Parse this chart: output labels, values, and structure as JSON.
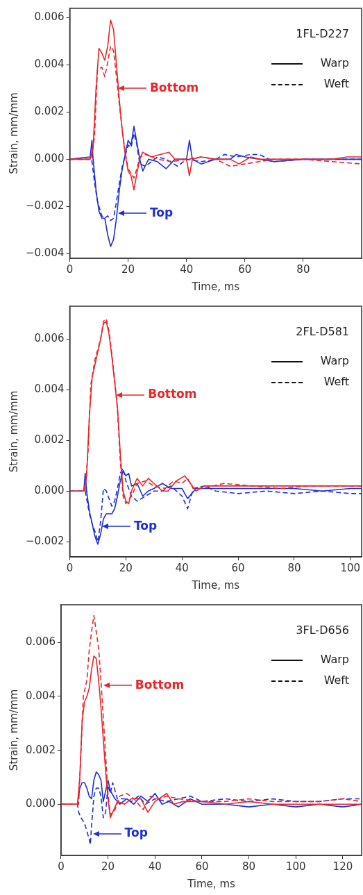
{
  "chart_data": [
    {
      "type": "line",
      "title": "1FL-D227",
      "xlabel": "Time, ms",
      "ylabel": "Strain, mm/mm",
      "xlim": [
        0,
        100
      ],
      "ylim": [
        -0.0042,
        0.0064
      ],
      "xticks": [
        0,
        20,
        40,
        60,
        80
      ],
      "yticks": [
        {
          "value": -0.004,
          "label": "−0.004"
        },
        {
          "value": -0.002,
          "label": "−0.002"
        },
        {
          "value": 0,
          "label": "0.000"
        },
        {
          "value": 0.002,
          "label": "0.002"
        },
        {
          "value": 0.004,
          "label": "0.004"
        },
        {
          "value": 0.006,
          "label": "0.006"
        }
      ],
      "grid": false,
      "marker": "none",
      "annotations": [
        "Warp",
        "Weft",
        {
          "text": "Bottom",
          "x": 16.5,
          "y": 0.003
        },
        {
          "text": "Top",
          "x": 16.5,
          "y": -0.0023
        }
      ],
      "series": [
        {
          "color": "#e8262a",
          "line_style": "solid",
          "x": [
            0,
            7,
            8,
            9,
            10,
            11,
            12,
            13,
            14,
            15,
            16,
            17,
            18,
            19,
            20,
            21,
            22,
            23,
            24,
            25,
            28,
            31,
            34,
            36,
            40,
            41,
            42,
            45,
            50,
            55,
            58,
            62,
            65,
            70,
            75,
            80,
            85,
            90,
            95,
            100
          ],
          "values": [
            0,
            0,
            0.0005,
            0.003,
            0.0047,
            0.0045,
            0.0042,
            0.0048,
            0.0059,
            0.0055,
            0.004,
            0.0025,
            0.0012,
            0.0002,
            -0.0005,
            -0.0007,
            -0.0013,
            -0.0006,
            0,
            0.0003,
            0.0001,
            0.0002,
            0.0003,
            0,
            0,
            -0.0007,
            0,
            0.0001,
            0,
            0,
            -0.0002,
            0.0001,
            0,
            0,
            0,
            0,
            0,
            0,
            0.0001,
            0.0001
          ]
        },
        {
          "color": "#e8262a",
          "line_style": "dashed",
          "x": [
            0,
            7.5,
            8.5,
            9.5,
            11,
            12,
            13,
            14,
            15,
            16,
            17,
            18,
            19,
            20,
            22,
            23,
            24,
            26,
            30,
            35,
            40,
            45,
            50,
            55,
            60,
            65,
            70,
            80,
            90,
            100
          ],
          "values": [
            0,
            0,
            0.001,
            0.0038,
            0.0039,
            0.0035,
            0.0041,
            0.0048,
            0.0046,
            0.0035,
            0.0023,
            0.0012,
            0.0003,
            -0.0004,
            -0.0008,
            -0.0004,
            0.0001,
            0.0002,
            0,
            -0.0001,
            0,
            0.0001,
            0,
            -0.0003,
            -0.0002,
            -0.0001,
            0,
            0,
            -0.0001,
            -0.0002
          ]
        },
        {
          "color": "#1c2fd6",
          "line_style": "solid",
          "x": [
            0,
            7,
            7.6,
            8,
            9,
            10,
            11,
            12,
            13,
            14,
            15,
            16,
            17,
            18,
            19,
            20,
            21,
            22,
            23,
            24,
            25,
            27,
            30,
            33,
            36,
            40,
            41,
            42,
            45,
            50,
            55,
            57,
            60,
            65,
            70,
            80,
            90,
            100
          ],
          "values": [
            0,
            0.0001,
            0.0008,
            0,
            -0.0013,
            -0.0022,
            -0.0025,
            -0.0025,
            -0.0032,
            -0.0037,
            -0.0034,
            -0.0025,
            -0.0013,
            -0.0004,
            0.0002,
            0.0008,
            0.0006,
            0.0014,
            0.0007,
            0,
            -0.0005,
            0,
            -0.0001,
            -0.0004,
            0,
            0,
            0.0008,
            0,
            -0.0002,
            0,
            0,
            0.0002,
            0.0001,
            0,
            -0.0001,
            0,
            0,
            0
          ]
        },
        {
          "color": "#1c2fd6",
          "line_style": "dashed",
          "x": [
            0,
            7.5,
            8.5,
            9.5,
            11,
            12,
            13,
            14,
            15,
            16,
            17,
            18,
            20,
            21,
            22,
            23,
            24,
            26,
            30,
            33,
            37,
            40,
            45,
            50,
            53,
            57,
            62,
            65,
            70,
            80,
            90,
            100
          ],
          "values": [
            0,
            0,
            -0.001,
            -0.0018,
            -0.0024,
            -0.0025,
            -0.0024,
            -0.0026,
            -0.0025,
            -0.0018,
            -0.001,
            -0.0003,
            0.0006,
            0.0005,
            0.0011,
            0.0006,
            -0.0002,
            -0.0003,
            0.0001,
            0,
            -0.0003,
            0,
            -0.0001,
            0,
            0.0002,
            0.0001,
            0.0002,
            0.0002,
            -0.0001,
            0,
            0,
            0
          ]
        }
      ]
    },
    {
      "type": "line",
      "title": "2FL-D581",
      "xlabel": "Time, ms",
      "ylabel": "Strain, mm/mm",
      "xlim": [
        0,
        104
      ],
      "ylim": [
        -0.0026,
        0.0073
      ],
      "xticks": [
        0,
        20,
        40,
        60,
        80,
        100
      ],
      "yticks": [
        {
          "value": -0.002,
          "label": "−0.002"
        },
        {
          "value": 0,
          "label": "0.000"
        },
        {
          "value": 0.002,
          "label": "0.002"
        },
        {
          "value": 0.004,
          "label": "0.004"
        },
        {
          "value": 0.006,
          "label": "0.006"
        }
      ],
      "grid": false,
      "marker": "none",
      "annotations": [
        "Warp",
        "Weft",
        {
          "text": "Bottom",
          "x": 16.5,
          "y": 0.0038
        },
        {
          "text": "Top",
          "x": 11.5,
          "y": -0.0014
        }
      ],
      "series": [
        {
          "color": "#e8262a",
          "line_style": "solid",
          "x": [
            0,
            5,
            6,
            7,
            8,
            9,
            10,
            11,
            12,
            13,
            14,
            15,
            16,
            17,
            18,
            19,
            20,
            21,
            22,
            24,
            26,
            28,
            30,
            33,
            35,
            38,
            41,
            43,
            45,
            48,
            55,
            60,
            70,
            80,
            90,
            100,
            104
          ],
          "values": [
            0,
            0,
            0.0006,
            0.003,
            0.0045,
            0.005,
            0.0055,
            0.006,
            0.0066,
            0.0067,
            0.0062,
            0.0053,
            0.0043,
            0.0033,
            0.0015,
            0,
            -0.0004,
            -0.0005,
            0,
            0.0005,
            0.0002,
            0.0005,
            0.0003,
            0,
            0,
            0.0004,
            0.0006,
            0.0003,
            0,
            0.0002,
            0.0002,
            0.0002,
            0.0002,
            0.0002,
            0.0002,
            0.0002,
            0.0002
          ]
        },
        {
          "color": "#e8262a",
          "line_style": "dashed",
          "x": [
            0,
            5.5,
            6.5,
            7.5,
            9,
            10,
            11,
            12,
            13,
            14,
            15,
            16,
            17,
            18,
            19,
            20,
            22,
            24,
            27,
            30,
            34,
            37,
            40,
            42,
            44,
            47,
            55,
            65,
            75,
            85,
            95,
            104
          ],
          "values": [
            0,
            0,
            0.0015,
            0.0042,
            0.0052,
            0.0056,
            0.006,
            0.0067,
            0.0068,
            0.0063,
            0.0054,
            0.0044,
            0.0032,
            0.0012,
            -0.0002,
            -0.0005,
            -0.0002,
            0.0003,
            0.0004,
            0.0002,
            0.0001,
            0.0004,
            0.0003,
            0.0005,
            0.0001,
            0.0001,
            0.0003,
            0.0002,
            0.0001,
            0.0002,
            0.0002,
            0.0002
          ]
        },
        {
          "color": "#1c2fd6",
          "line_style": "solid",
          "x": [
            0,
            5,
            5.5,
            6,
            7,
            8,
            9,
            10,
            11,
            12,
            13,
            15,
            16,
            17,
            18,
            19,
            20,
            21,
            22,
            24,
            26,
            28,
            30,
            33,
            36,
            40,
            42,
            45,
            50,
            60,
            70,
            80,
            90,
            100,
            104
          ],
          "values": [
            0,
            0,
            0.0007,
            0,
            -0.0008,
            -0.0013,
            -0.0018,
            -0.0021,
            -0.0017,
            -0.0011,
            -0.0009,
            -0.0009,
            -0.0007,
            -0.0002,
            0.0004,
            0.0008,
            0.0006,
            0.0007,
            0.0002,
            0.0003,
            -0.0002,
            0,
            0.0001,
            0.0003,
            0.0001,
            0.0001,
            -0.0003,
            0.0001,
            0.0001,
            0.0001,
            0.0001,
            0.0001,
            0,
            0.0001,
            0.0001
          ]
        },
        {
          "color": "#1c2fd6",
          "line_style": "dashed",
          "x": [
            0,
            5.5,
            6,
            7,
            8,
            9,
            10,
            11,
            12,
            13,
            14,
            15,
            16,
            17,
            18,
            19,
            20,
            22,
            24,
            27,
            30,
            33,
            36,
            40,
            42,
            44,
            48,
            52,
            60,
            70,
            80,
            90,
            100,
            104
          ],
          "values": [
            0,
            0,
            -0.0003,
            -0.0009,
            -0.0013,
            -0.0016,
            -0.002,
            -0.0012,
            0.0001,
            0,
            -0.0003,
            -0.0006,
            -0.0004,
            0.0001,
            0.0007,
            0.0009,
            0.0004,
            -0.0002,
            -0.0004,
            -0.0002,
            0,
            0,
            0.0002,
            -0.0002,
            -0.0007,
            0.0001,
            0.0002,
            0,
            -0.0001,
            0,
            -0.0001,
            0,
            -0.0001,
            -0.0001
          ]
        }
      ]
    },
    {
      "type": "line",
      "title": "3FL-D656",
      "xlabel": "Time, ms",
      "ylabel": "Strain, mm/mm",
      "xlim": [
        0,
        128
      ],
      "ylim": [
        -0.0019,
        0.0074
      ],
      "xticks": [
        0,
        20,
        40,
        60,
        80,
        100,
        120
      ],
      "yticks": [
        {
          "value": 0,
          "label": "0.000"
        },
        {
          "value": 0.002,
          "label": "0.002"
        },
        {
          "value": 0.004,
          "label": "0.004"
        },
        {
          "value": 0.006,
          "label": "0.006"
        }
      ],
      "grid": false,
      "marker": "none",
      "annotations": [
        "Warp",
        "Weft",
        {
          "text": "Bottom",
          "x": 18,
          "y": 0.0044
        },
        {
          "text": "Top",
          "x": 13.5,
          "y": -0.0011
        }
      ],
      "series": [
        {
          "color": "#e8262a",
          "line_style": "solid",
          "x": [
            0,
            7,
            8,
            9,
            10,
            11,
            12,
            13,
            14,
            15,
            16,
            17,
            18,
            19,
            20,
            21,
            22,
            24,
            27,
            30,
            34,
            37,
            40,
            45,
            48,
            52,
            60,
            70,
            80,
            90,
            100,
            110,
            120,
            128
          ],
          "values": [
            0,
            0,
            0.001,
            0.0031,
            0.0038,
            0.004,
            0.0043,
            0.005,
            0.0055,
            0.0054,
            0.0046,
            0.0036,
            0.0024,
            0.0012,
            0.0002,
            -0.0005,
            -0.0003,
            0.0001,
            0,
            0.0002,
            0.0002,
            -0.0003,
            0.0001,
            0.0004,
            0,
            0.0001,
            0.0001,
            0,
            0.0001,
            0,
            0,
            0,
            0,
            0
          ]
        },
        {
          "color": "#e8262a",
          "line_style": "dashed",
          "x": [
            0,
            7.5,
            8.5,
            9.5,
            11,
            12,
            13,
            14,
            15,
            16,
            17,
            18,
            19,
            20,
            21,
            23,
            25,
            28,
            31,
            35,
            38,
            42,
            45,
            50,
            60,
            70,
            80,
            90,
            100,
            110,
            120,
            128
          ],
          "values": [
            0,
            0,
            0.002,
            0.004,
            0.0046,
            0.0057,
            0.0064,
            0.007,
            0.0064,
            0.0058,
            0.0046,
            0.0032,
            0.0018,
            0.0004,
            -0.0004,
            -0.0002,
            0.0003,
            0.0004,
            0.0002,
            -0.0002,
            0.0003,
            0.0002,
            0.0003,
            0.0002,
            0.0001,
            0.0001,
            0.0002,
            0.0001,
            0.0001,
            0.0001,
            0.0002,
            0.0001
          ]
        },
        {
          "color": "#1c2fd6",
          "line_style": "solid",
          "x": [
            0,
            7,
            8,
            9,
            10,
            11,
            12,
            13,
            14,
            15,
            16,
            17,
            18,
            19,
            20,
            21,
            23,
            25,
            28,
            31,
            34,
            37,
            40,
            43,
            46,
            50,
            55,
            60,
            70,
            80,
            90,
            100,
            110,
            120,
            128
          ],
          "values": [
            0,
            0,
            0.0006,
            0.0008,
            0.0008,
            0.0006,
            0.0003,
            0.0002,
            0.0009,
            0.0012,
            0.0011,
            0.0009,
            0.0001,
            0.0005,
            0.0009,
            0.0005,
            0.0002,
            0,
            0.0002,
            0,
            0.0003,
            0.0001,
            0.0004,
            0,
            0.0001,
            -0.0001,
            0.0002,
            0,
            0,
            -0.0001,
            0,
            -0.0001,
            0,
            -0.0001,
            0
          ]
        },
        {
          "color": "#1c2fd6",
          "line_style": "dashed",
          "x": [
            0,
            7,
            7.5,
            8.5,
            10,
            11,
            12,
            12.5,
            13,
            14,
            15,
            16,
            17,
            18,
            19,
            20,
            21,
            22,
            24,
            27,
            30,
            33,
            36,
            40,
            45,
            50,
            55,
            60,
            70,
            80,
            90,
            100,
            110,
            120,
            128
          ],
          "values": [
            0,
            0,
            -0.0003,
            -0.0005,
            -0.0007,
            -0.001,
            -0.0013,
            -0.0015,
            -0.0008,
            0.0003,
            0.0006,
            0.0006,
            0.0003,
            -0.0005,
            -0.0003,
            0.0007,
            0.0004,
            0.0008,
            0.0002,
            0.0002,
            0.0001,
            0.0003,
            0,
            0.0002,
            0.0001,
            0.0002,
            0.0003,
            0.0001,
            0.0002,
            0.0001,
            0.0002,
            0.0001,
            0.0001,
            0.0002,
            0.0002
          ]
        }
      ]
    }
  ]
}
